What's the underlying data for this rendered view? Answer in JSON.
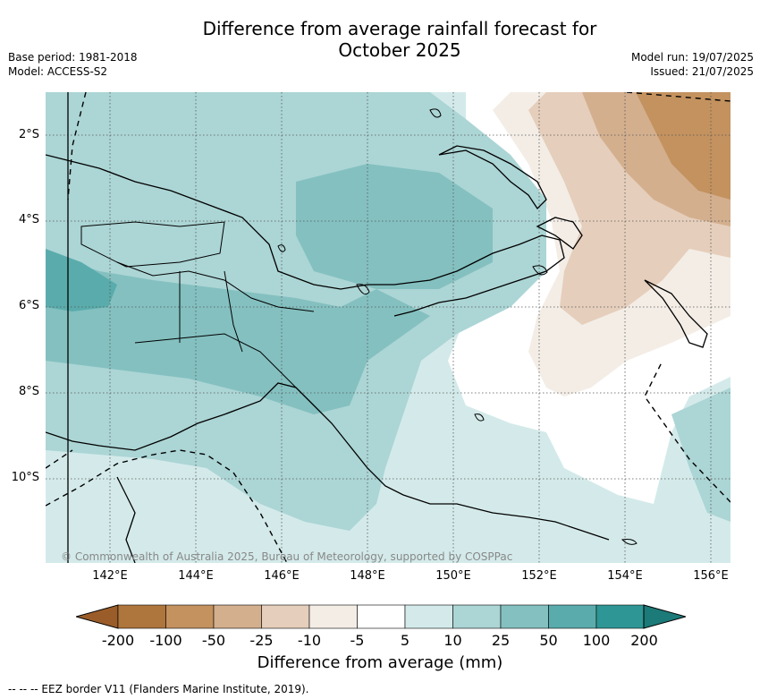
{
  "title": [
    "Difference from average rainfall forecast for",
    "October 2025"
  ],
  "meta_left": [
    "Base period: 1981-2018",
    "Model: ACCESS-S2"
  ],
  "meta_right": [
    "Model run: 19/07/2025",
    "Issued: 21/07/2025"
  ],
  "copyright": "© Commonwealth of Australia 2025, Bureau of Meteorology, supported by COSPPac",
  "latitude_labels": [
    "2°S",
    "4°S",
    "6°S",
    "8°S",
    "10°S"
  ],
  "longitude_labels": [
    "142°E",
    "144°E",
    "146°E",
    "148°E",
    "150°E",
    "152°E",
    "154°E",
    "156°E"
  ],
  "colorbar": {
    "label": "Difference from average (mm)",
    "ticks": [
      "-200",
      "-100",
      "-50",
      "-25",
      "-10",
      "-5",
      "5",
      "10",
      "25",
      "50",
      "100",
      "200"
    ],
    "colors": [
      "#9a5d2a",
      "#ae753d",
      "#c3925f",
      "#d3af8e",
      "#e5cebb",
      "#f3ede6",
      "#ffffff",
      "#d4eaea",
      "#acd5d5",
      "#84c0c0",
      "#5aacac",
      "#2e9795",
      "#1c7a78"
    ]
  },
  "footnote": "--  --  -- EEZ border V11 (Flanders Marine Institute, 2019)."
}
